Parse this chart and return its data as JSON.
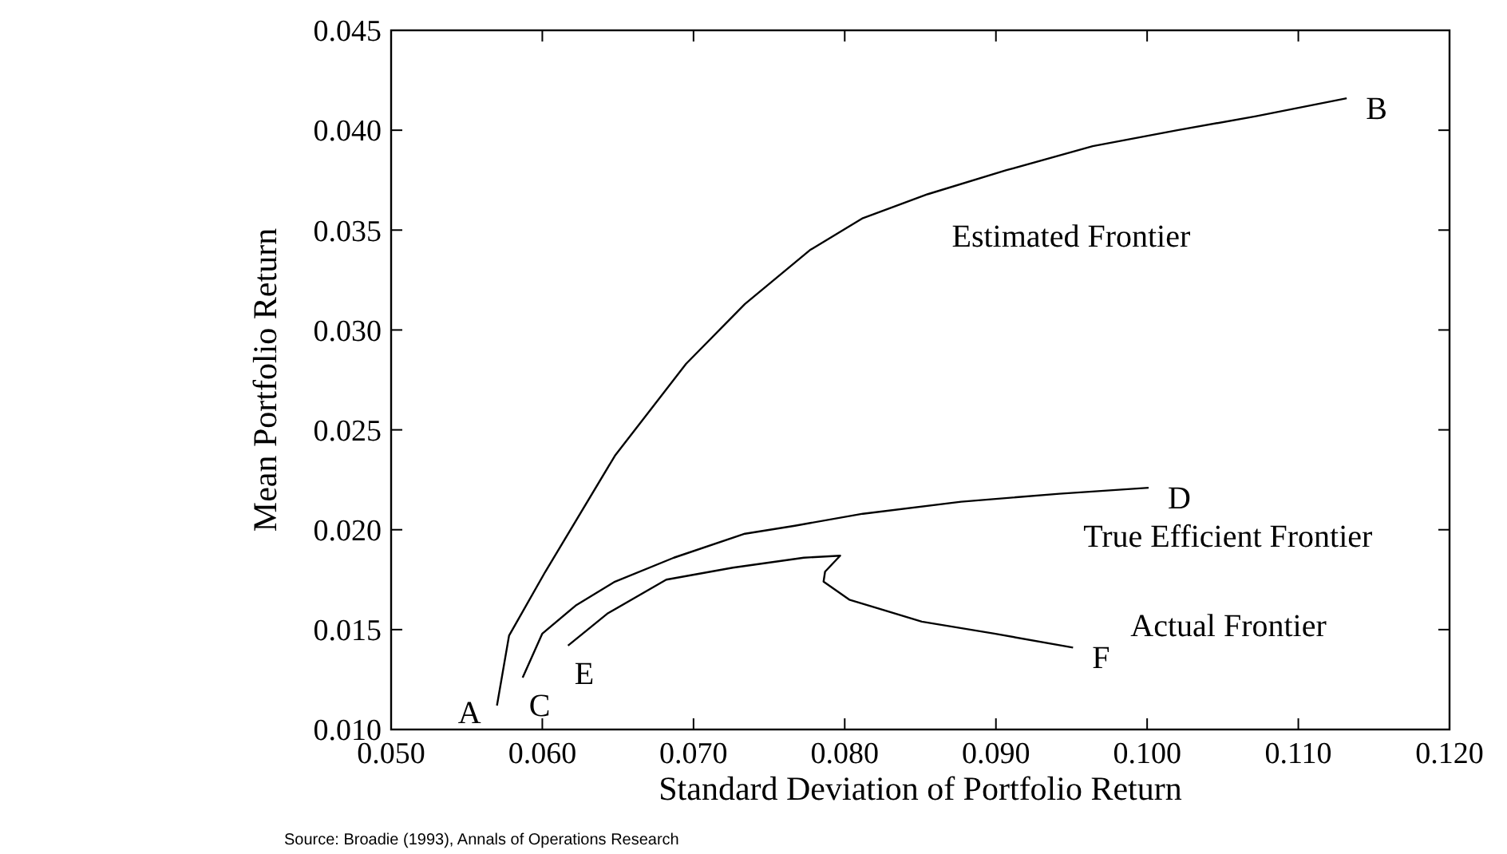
{
  "chart_data": {
    "type": "line",
    "xlabel": "Standard Deviation of Portfolio Return",
    "ylabel": "Mean Portfolio Return",
    "xlim": [
      0.05,
      0.12
    ],
    "xticks": [
      {
        "value": 0.05,
        "label": "0.050"
      },
      {
        "value": 0.06,
        "label": "0.060"
      },
      {
        "value": 0.07,
        "label": "0.070"
      },
      {
        "value": 0.08,
        "label": "0.080"
      },
      {
        "value": 0.09,
        "label": "0.090"
      },
      {
        "value": 0.1,
        "label": "0.100"
      },
      {
        "value": 0.11,
        "label": "0.110"
      },
      {
        "value": 0.12,
        "label": "0.120"
      }
    ],
    "ylim": [
      0.01,
      0.045
    ],
    "yticks": [
      {
        "value": 0.01,
        "label": "0.010"
      },
      {
        "value": 0.015,
        "label": "0.015"
      },
      {
        "value": 0.02,
        "label": "0.020"
      },
      {
        "value": 0.025,
        "label": "0.025"
      },
      {
        "value": 0.03,
        "label": "0.030"
      },
      {
        "value": 0.035,
        "label": "0.035"
      },
      {
        "value": 0.04,
        "label": "0.040"
      },
      {
        "value": 0.045,
        "label": "0.045"
      }
    ],
    "grid": false,
    "marker": "none",
    "line_style": "solid",
    "series": [
      {
        "color": "#000000",
        "x": [
          0.057,
          0.0578,
          0.0602,
          0.0648,
          0.0695,
          0.0734,
          0.0777,
          0.0812,
          0.0855,
          0.0907,
          0.0964,
          0.102,
          0.1072,
          0.1132
        ],
        "values": [
          0.0112,
          0.0147,
          0.0179,
          0.0237,
          0.0283,
          0.0313,
          0.034,
          0.0356,
          0.0368,
          0.038,
          0.0392,
          0.04,
          0.0407,
          0.0416
        ]
      },
      {
        "color": "#000000",
        "x": [
          0.0587,
          0.06,
          0.0622,
          0.0648,
          0.0687,
          0.0734,
          0.0767,
          0.0812,
          0.0877,
          0.0942,
          0.1001
        ],
        "values": [
          0.0126,
          0.0148,
          0.0162,
          0.0174,
          0.0186,
          0.0198,
          0.0202,
          0.0208,
          0.0214,
          0.0218,
          0.0221
        ]
      },
      {
        "color": "#000000",
        "x": [
          0.0617,
          0.0643,
          0.0682,
          0.0726,
          0.0773,
          0.0797,
          0.0787,
          0.0786,
          0.0803,
          0.0851,
          0.0899,
          0.0951
        ],
        "values": [
          0.0142,
          0.0158,
          0.0175,
          0.0181,
          0.0186,
          0.0187,
          0.0179,
          0.0174,
          0.0165,
          0.0154,
          0.0148,
          0.0141
        ]
      }
    ],
    "annotations": [
      {
        "text": "A",
        "x": 0.057,
        "y": 0.0112
      },
      {
        "text": "B",
        "x": 0.1132,
        "y": 0.0416
      },
      {
        "text": "C",
        "x": 0.0587,
        "y": 0.0126
      },
      {
        "text": "D",
        "x": 0.1001,
        "y": 0.0221
      },
      {
        "text": "E",
        "x": 0.0617,
        "y": 0.0142
      },
      {
        "text": "F",
        "x": 0.0951,
        "y": 0.0141
      },
      {
        "text": "Estimated Frontier",
        "x": 0.0855,
        "y": 0.0368
      },
      {
        "text": "True Efficient Frontier",
        "x": 0.0942,
        "y": 0.0218
      },
      {
        "text": "Actual Frontier",
        "x": 0.0951,
        "y": 0.0141
      },
      "Source: Broadie (1993), Annals of Operations Research"
    ]
  }
}
